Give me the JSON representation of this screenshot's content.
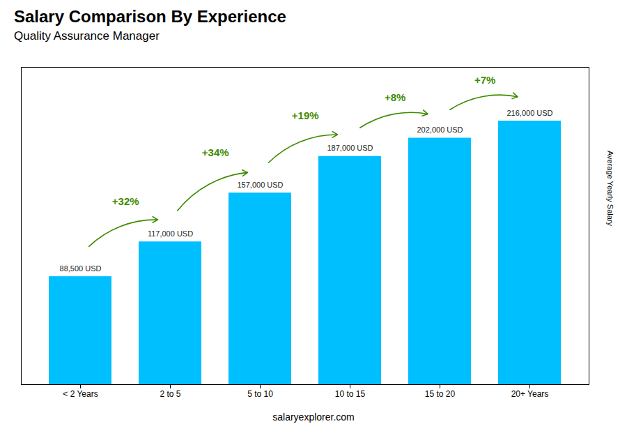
{
  "chart_data": {
    "type": "bar",
    "title": "Salary Comparison By Experience",
    "subtitle": "Quality Assurance Manager",
    "ylabel": "Average Yearly Salary",
    "categories": [
      "< 2 Years",
      "2 to 5",
      "5 to 10",
      "10 to 15",
      "15 to 20",
      "20+ Years"
    ],
    "values": [
      88500,
      117000,
      157000,
      187000,
      202000,
      216000
    ],
    "value_labels": [
      "88,500 USD",
      "117,000 USD",
      "157,000 USD",
      "187,000 USD",
      "202,000 USD",
      "216,000 USD"
    ],
    "data_labels": true,
    "color": "#00BFFF",
    "ylim": [
      0,
      260000
    ],
    "tick_labels": "x",
    "grid": false,
    "annotations": [
      "+32%",
      "+34%",
      "+19%",
      "+8%",
      "+7%"
    ],
    "footer": "salaryexplorer.com"
  }
}
